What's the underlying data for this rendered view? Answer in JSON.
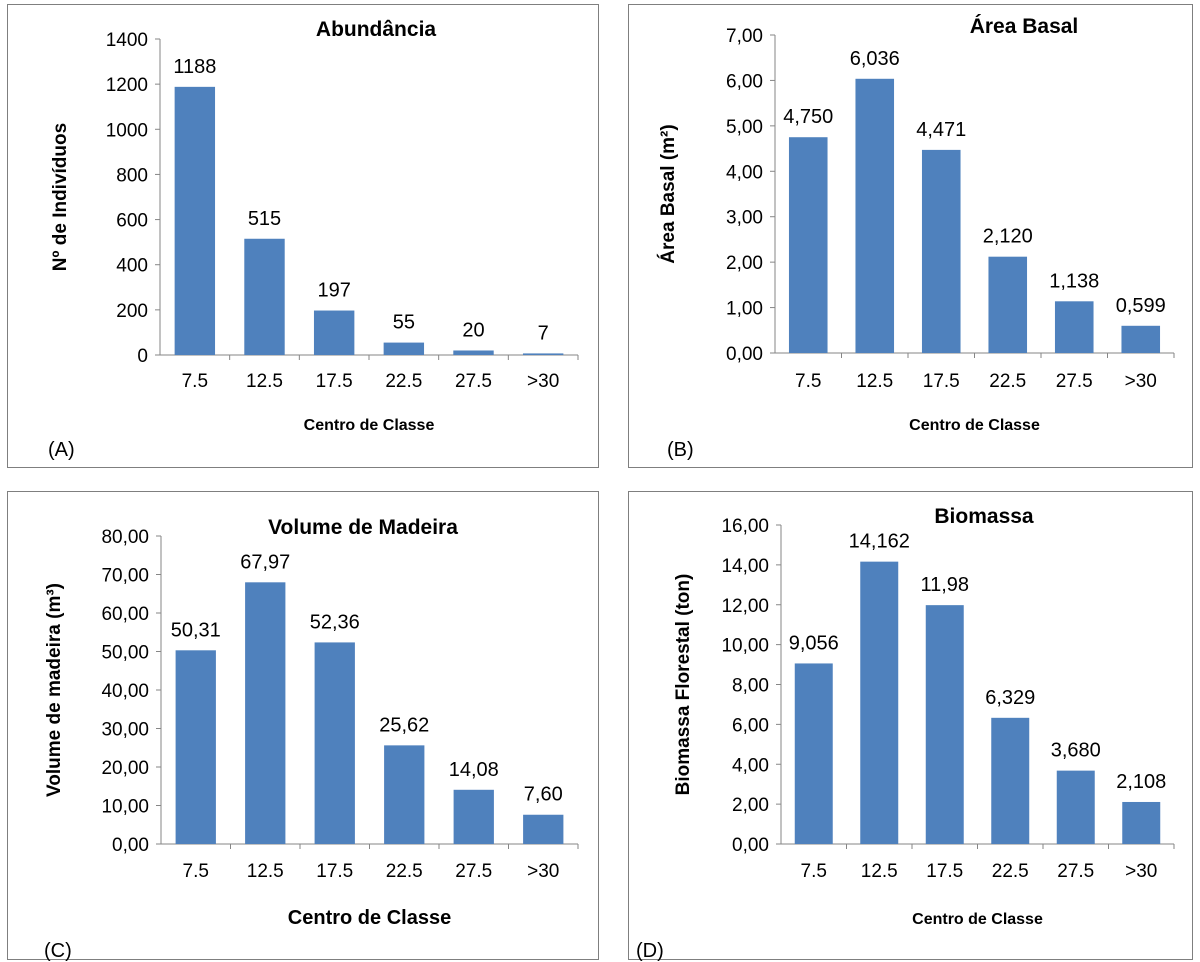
{
  "colors": {
    "bar": "#4F81BD",
    "axis": "#868686",
    "border": "#7f7f7f"
  },
  "chart_data": [
    {
      "type": "bar",
      "panel_label": "(A)",
      "title": "Abundância",
      "xlabel": "Centro de Classe",
      "ylabel": "Nº de Indivíduos",
      "categories": [
        "7.5",
        "12.5",
        "17.5",
        "22.5",
        "27.5",
        ">30"
      ],
      "values": [
        1188,
        515,
        197,
        55,
        20,
        7
      ],
      "value_labels": [
        "1188",
        "515",
        "197",
        "55",
        "20",
        "7"
      ],
      "ylim": [
        0,
        1400
      ],
      "yticks": [
        0,
        200,
        400,
        600,
        800,
        1000,
        1200,
        1400
      ],
      "ytick_labels": [
        "0",
        "200",
        "400",
        "600",
        "800",
        "1000",
        "1200",
        "1400"
      ],
      "grid": false,
      "legend": "none"
    },
    {
      "type": "bar",
      "panel_label": "(B)",
      "title": "Área Basal",
      "xlabel": "Centro de Classe",
      "ylabel": "Área Basal (m²)",
      "categories": [
        "7.5",
        "12.5",
        "17.5",
        "22.5",
        "27.5",
        ">30"
      ],
      "values": [
        4.75,
        6.036,
        4.471,
        2.12,
        1.138,
        0.599
      ],
      "value_labels": [
        "4,750",
        "6,036",
        "4,471",
        "2,120",
        "1,138",
        "0,599"
      ],
      "ylim": [
        0,
        7
      ],
      "yticks": [
        0,
        1,
        2,
        3,
        4,
        5,
        6,
        7
      ],
      "ytick_labels": [
        "0,00",
        "1,00",
        "2,00",
        "3,00",
        "4,00",
        "5,00",
        "6,00",
        "7,00"
      ],
      "grid": false,
      "legend": "none"
    },
    {
      "type": "bar",
      "panel_label": "(C)",
      "title": "Volume de Madeira",
      "xlabel": "Centro de Classe",
      "ylabel": "Volume de madeira (m³)",
      "categories": [
        "7.5",
        "12.5",
        "17.5",
        "22.5",
        "27.5",
        ">30"
      ],
      "values": [
        50.31,
        67.97,
        52.36,
        25.62,
        14.08,
        7.6
      ],
      "value_labels": [
        "50,31",
        "67,97",
        "52,36",
        "25,62",
        "14,08",
        "7,60"
      ],
      "ylim": [
        0,
        80
      ],
      "yticks": [
        0,
        10,
        20,
        30,
        40,
        50,
        60,
        70,
        80
      ],
      "ytick_labels": [
        "0,00",
        "10,00",
        "20,00",
        "30,00",
        "40,00",
        "50,00",
        "60,00",
        "70,00",
        "80,00"
      ],
      "grid": false,
      "legend": "none"
    },
    {
      "type": "bar",
      "panel_label": "(D)",
      "title": "Biomassa",
      "xlabel": "Centro de Classe",
      "ylabel": "Biomassa Florestal (ton)",
      "categories": [
        "7.5",
        "12.5",
        "17.5",
        "22.5",
        "27.5",
        ">30"
      ],
      "values": [
        9.056,
        14.162,
        11.98,
        6.329,
        3.68,
        2.108
      ],
      "value_labels": [
        "9,056",
        "14,162",
        "11,98",
        "6,329",
        "3,680",
        "2,108"
      ],
      "ylim": [
        0,
        16
      ],
      "yticks": [
        0,
        2,
        4,
        6,
        8,
        10,
        12,
        14,
        16
      ],
      "ytick_labels": [
        "0,00",
        "2,00",
        "4,00",
        "6,00",
        "8,00",
        "10,00",
        "12,00",
        "14,00",
        "16,00"
      ],
      "grid": false,
      "legend": "none"
    }
  ]
}
